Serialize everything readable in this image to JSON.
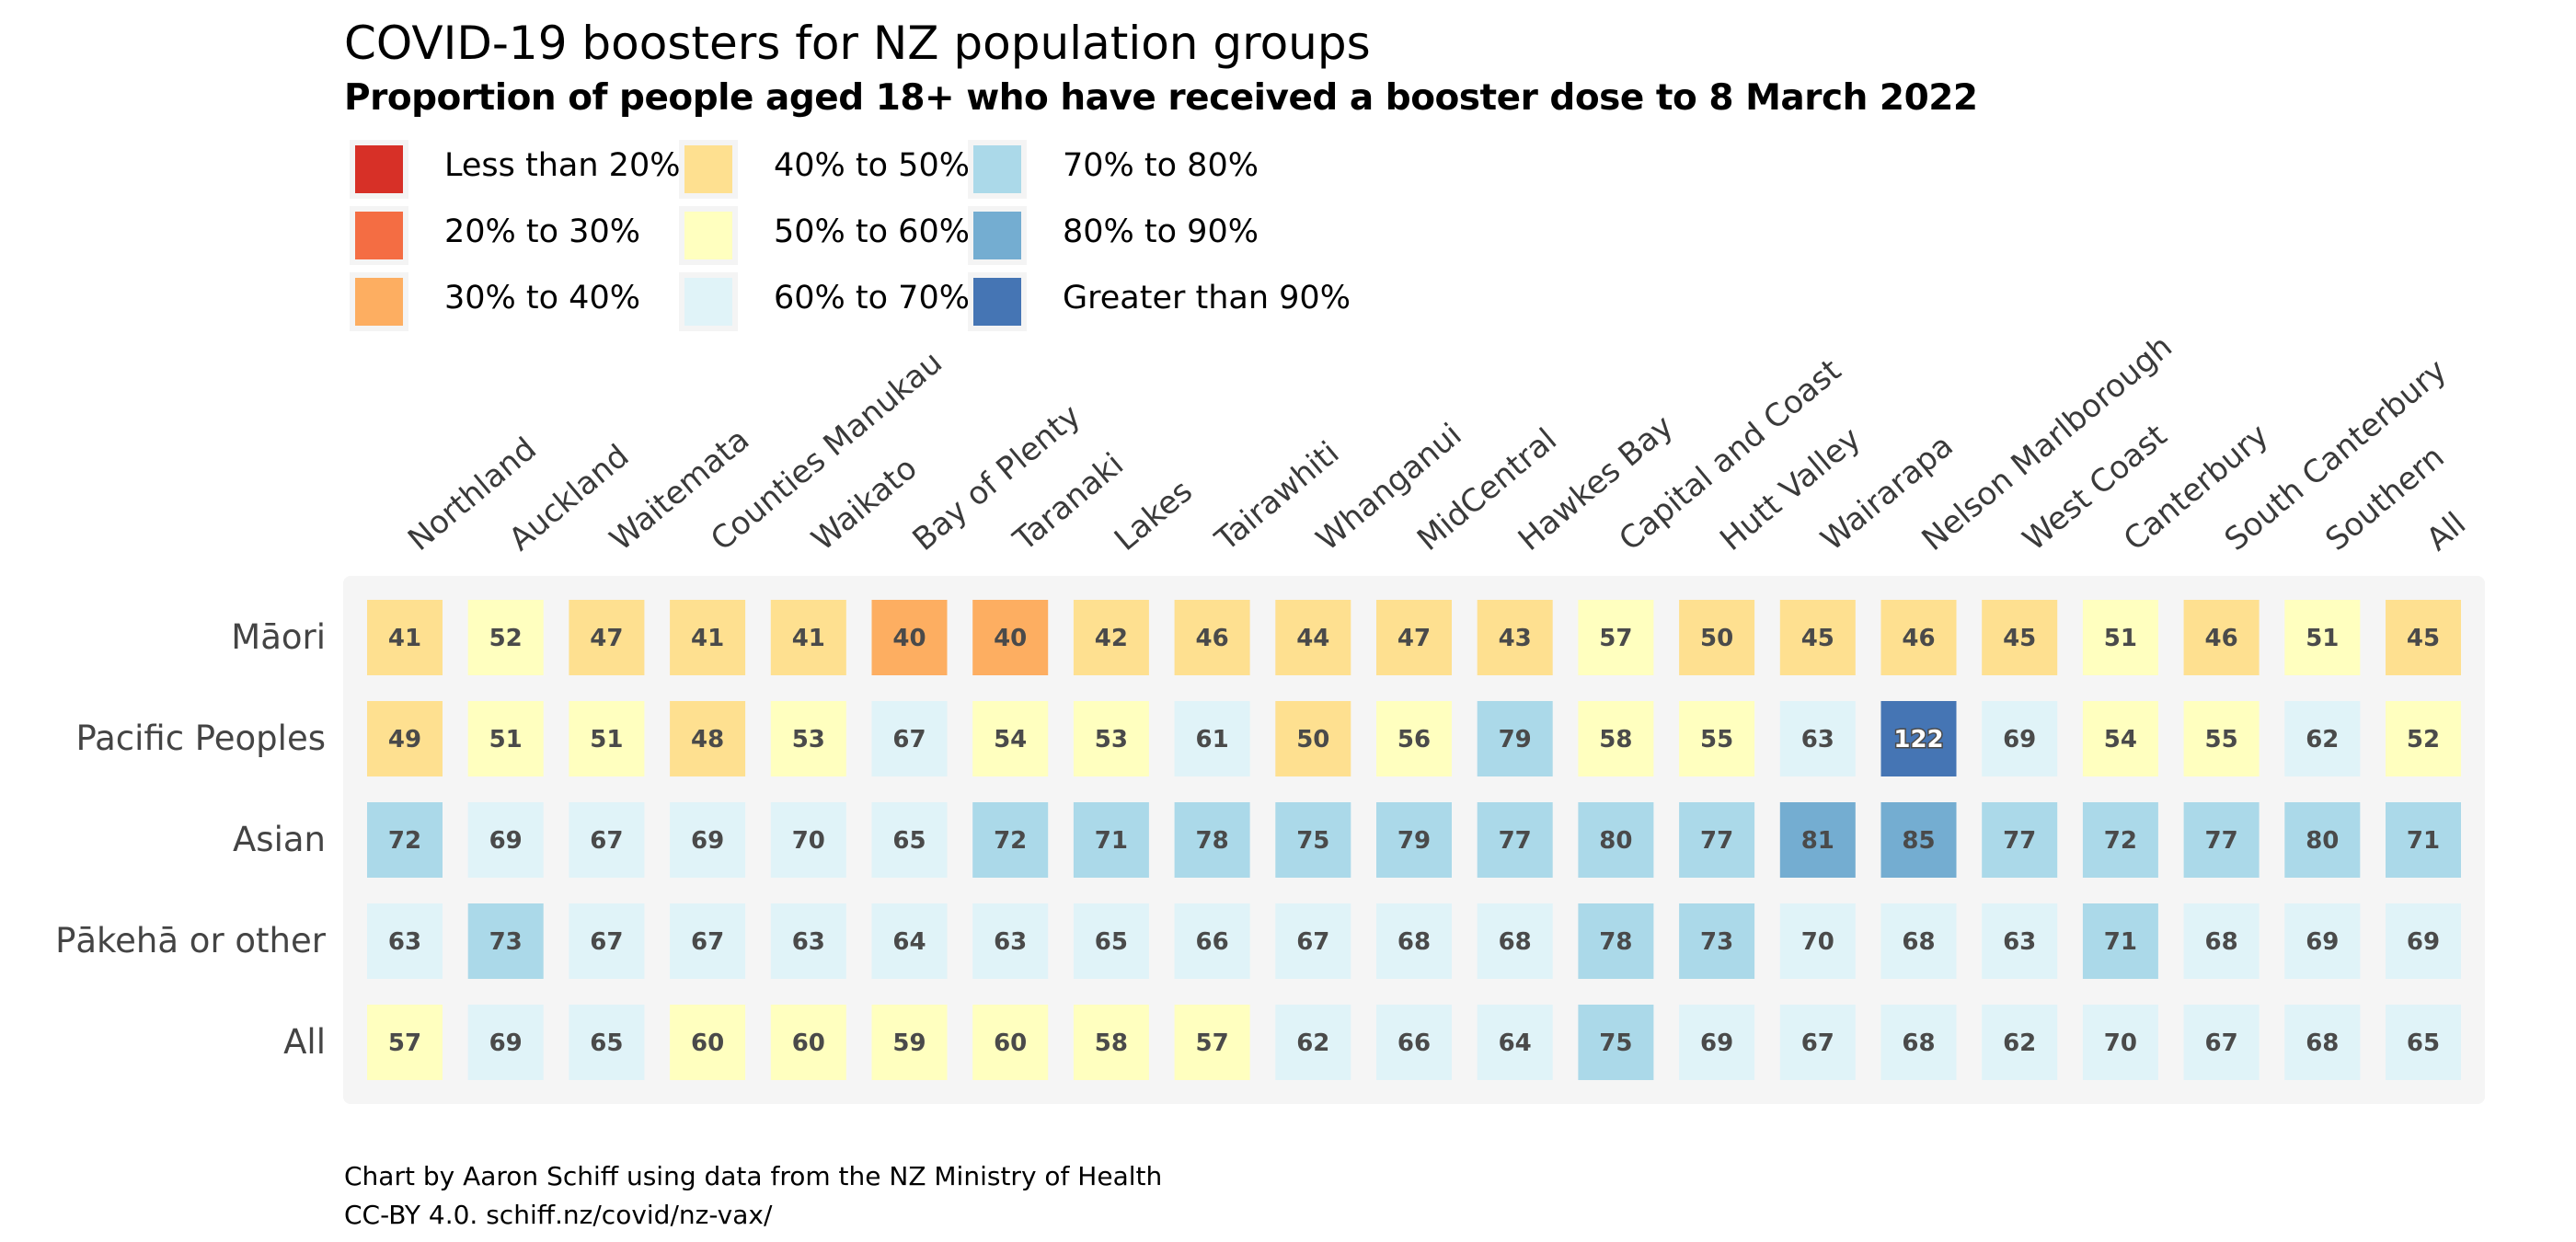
{
  "title": "COVID-19 boosters for NZ population groups",
  "subtitle": "Proportion of people aged 18+ who have received a booster dose to 8 March 2022",
  "caption": {
    "line1": "Chart by Aaron Schiff using data from the NZ Ministry of Health",
    "line2": "CC-BY 4.0. schiff.nz/covid/nz-vax/"
  },
  "legend": [
    {
      "label": "Less than 20%",
      "color": "#d73027"
    },
    {
      "label": "20% to 30%",
      "color": "#f46d43"
    },
    {
      "label": "30% to 40%",
      "color": "#fdae61"
    },
    {
      "label": "40% to 50%",
      "color": "#fee090"
    },
    {
      "label": "50% to 60%",
      "color": "#ffffbf"
    },
    {
      "label": "60% to 70%",
      "color": "#e0f3f8"
    },
    {
      "label": "70% to 80%",
      "color": "#abd9e9"
    },
    {
      "label": "80% to 90%",
      "color": "#74add1"
    },
    {
      "label": "Greater than 90%",
      "color": "#4575b4"
    }
  ],
  "chart_data": {
    "type": "heatmap",
    "columns": [
      "Northland",
      "Auckland",
      "Waitemata",
      "Counties Manukau",
      "Waikato",
      "Bay of Plenty",
      "Taranaki",
      "Lakes",
      "Tairawhiti",
      "Whanganui",
      "MidCentral",
      "Hawkes Bay",
      "Capital and Coast",
      "Hutt Valley",
      "Wairarapa",
      "Nelson Marlborough",
      "West Coast",
      "Canterbury",
      "South Canterbury",
      "Southern",
      "All"
    ],
    "rows": [
      "Māori",
      "Pacific Peoples",
      "Asian",
      "Pākehā or other",
      "All"
    ],
    "values": [
      [
        41,
        52,
        47,
        41,
        41,
        40,
        40,
        42,
        46,
        44,
        47,
        43,
        57,
        50,
        45,
        46,
        45,
        51,
        46,
        51,
        45
      ],
      [
        49,
        51,
        51,
        48,
        53,
        67,
        54,
        53,
        61,
        50,
        56,
        79,
        58,
        55,
        63,
        122,
        69,
        54,
        55,
        62,
        52
      ],
      [
        72,
        69,
        67,
        69,
        70,
        65,
        72,
        71,
        78,
        75,
        79,
        77,
        80,
        77,
        81,
        85,
        77,
        72,
        77,
        80,
        71
      ],
      [
        63,
        73,
        67,
        67,
        63,
        64,
        63,
        65,
        66,
        67,
        68,
        68,
        78,
        73,
        70,
        68,
        63,
        71,
        68,
        69,
        69
      ],
      [
        57,
        69,
        65,
        60,
        60,
        59,
        60,
        58,
        57,
        62,
        66,
        64,
        75,
        69,
        67,
        68,
        62,
        70,
        67,
        68,
        65
      ]
    ],
    "cell_colors": [
      [
        "#fee090",
        "#ffffbf",
        "#fee090",
        "#fee090",
        "#fee090",
        "#fdae61",
        "#fdae61",
        "#fee090",
        "#fee090",
        "#fee090",
        "#fee090",
        "#fee090",
        "#ffffbf",
        "#fee090",
        "#fee090",
        "#fee090",
        "#fee090",
        "#ffffbf",
        "#fee090",
        "#ffffbf",
        "#fee090"
      ],
      [
        "#fee090",
        "#ffffbf",
        "#ffffbf",
        "#fee090",
        "#ffffbf",
        "#e0f3f8",
        "#ffffbf",
        "#ffffbf",
        "#e0f3f8",
        "#fee090",
        "#ffffbf",
        "#abd9e9",
        "#ffffbf",
        "#ffffbf",
        "#e0f3f8",
        "#4575b4",
        "#e0f3f8",
        "#ffffbf",
        "#ffffbf",
        "#e0f3f8",
        "#ffffbf"
      ],
      [
        "#abd9e9",
        "#e0f3f8",
        "#e0f3f8",
        "#e0f3f8",
        "#e0f3f8",
        "#e0f3f8",
        "#abd9e9",
        "#abd9e9",
        "#abd9e9",
        "#abd9e9",
        "#abd9e9",
        "#abd9e9",
        "#abd9e9",
        "#abd9e9",
        "#74add1",
        "#74add1",
        "#abd9e9",
        "#abd9e9",
        "#abd9e9",
        "#abd9e9",
        "#abd9e9"
      ],
      [
        "#e0f3f8",
        "#abd9e9",
        "#e0f3f8",
        "#e0f3f8",
        "#e0f3f8",
        "#e0f3f8",
        "#e0f3f8",
        "#e0f3f8",
        "#e0f3f8",
        "#e0f3f8",
        "#e0f3f8",
        "#e0f3f8",
        "#abd9e9",
        "#abd9e9",
        "#e0f3f8",
        "#e0f3f8",
        "#e0f3f8",
        "#abd9e9",
        "#e0f3f8",
        "#e0f3f8",
        "#e0f3f8"
      ],
      [
        "#ffffbf",
        "#e0f3f8",
        "#e0f3f8",
        "#ffffbf",
        "#ffffbf",
        "#ffffbf",
        "#ffffbf",
        "#ffffbf",
        "#ffffbf",
        "#e0f3f8",
        "#e0f3f8",
        "#e0f3f8",
        "#abd9e9",
        "#e0f3f8",
        "#e0f3f8",
        "#e0f3f8",
        "#e0f3f8",
        "#e0f3f8",
        "#e0f3f8",
        "#e0f3f8",
        "#e0f3f8"
      ]
    ],
    "grid": false,
    "legend_position": "top-left"
  }
}
